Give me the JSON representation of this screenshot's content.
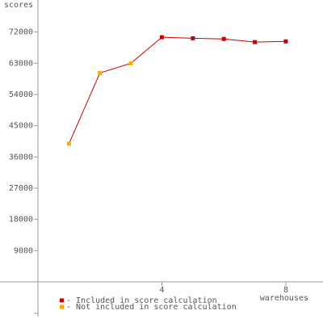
{
  "chart_data": {
    "type": "line",
    "y_label": "scores",
    "x_label": "warehouses",
    "x": [
      1,
      2,
      3,
      4,
      5,
      6,
      7,
      8
    ],
    "series": [
      {
        "name": "- Included in score calculation",
        "color": "#cc0000",
        "values": [
          null,
          null,
          null,
          70500,
          70200,
          70000,
          69100,
          69300
        ]
      },
      {
        "name": "- Not included in score calculation",
        "color": "#ffaa00",
        "values": [
          39800,
          60200,
          63000,
          null,
          null,
          null,
          null,
          null
        ]
      }
    ],
    "line_color": "#cc0000",
    "xlim": [
      0,
      9.2
    ],
    "xticks": [
      4,
      8
    ],
    "ylim": [
      -10000,
      81000
    ],
    "yticks": [
      9000,
      18000,
      27000,
      36000,
      45000,
      54000,
      63000,
      72000
    ]
  }
}
